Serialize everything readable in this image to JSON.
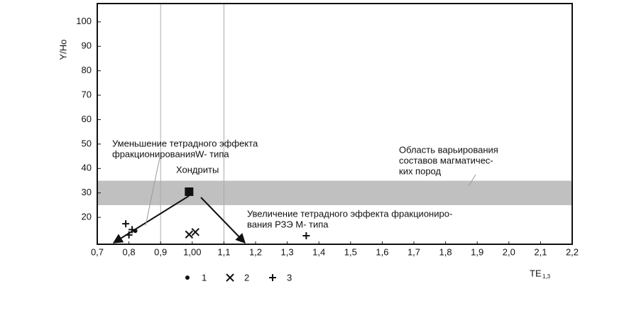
{
  "chart_data": {
    "type": "scatter",
    "xlabel": "TE",
    "xlabel_sub": "1,3",
    "ylabel": "Y/Ho",
    "xlim": [
      0.7,
      2.2
    ],
    "ylim": [
      9,
      107.5
    ],
    "xticks": [
      {
        "value": 0.7,
        "label": "0,7"
      },
      {
        "value": 0.8,
        "label": "0,8"
      },
      {
        "value": 0.9,
        "label": "0,9"
      },
      {
        "value": 1.0,
        "label": "1,00"
      },
      {
        "value": 1.1,
        "label": "1,1"
      },
      {
        "value": 1.2,
        "label": "1,2"
      },
      {
        "value": 1.3,
        "label": "1,3"
      },
      {
        "value": 1.4,
        "label": "1,4"
      },
      {
        "value": 1.5,
        "label": "1,5"
      },
      {
        "value": 1.6,
        "label": "1,6"
      },
      {
        "value": 1.7,
        "label": "1,7"
      },
      {
        "value": 1.8,
        "label": "1,8"
      },
      {
        "value": 1.9,
        "label": "1,9"
      },
      {
        "value": 2.0,
        "label": "2,0"
      },
      {
        "value": 2.1,
        "label": "2,1"
      },
      {
        "value": 2.2,
        "label": "2,2"
      }
    ],
    "yticks": [
      20,
      30,
      40,
      50,
      60,
      70,
      80,
      90,
      100
    ],
    "guide_lines": [
      0.9,
      1.1
    ],
    "band": {
      "range": [
        25,
        35
      ],
      "color": "#c0c0c0"
    },
    "series": [
      {
        "name": "1",
        "marker": "dot",
        "color": "#111111",
        "x": [
          0.82
        ],
        "y": [
          14.5
        ]
      },
      {
        "name": "2",
        "marker": "x",
        "color": "#111111",
        "x": [
          0.99,
          1.01
        ],
        "y": [
          13,
          14
        ]
      },
      {
        "name": "3",
        "marker": "plus",
        "color": "#111111",
        "x": [
          0.79,
          0.8,
          0.81,
          1.36
        ],
        "y": [
          17.4,
          12.8,
          15,
          12.5
        ]
      }
    ],
    "chondrite": {
      "label": "Хондриты",
      "x": 0.99,
      "y": 30.5,
      "color": "#111111"
    },
    "annotations": {
      "decrease": [
        "Уменьшение тетрадного эффекта",
        "фракционированияW-  типа"
      ],
      "increase": [
        "Увеличение тетрадного эффекта фракциониро-",
        "вания РЗЭ М- типа"
      ],
      "region": [
        "Область варьирования",
        "составов магматичес-",
        "ких пород"
      ]
    }
  }
}
